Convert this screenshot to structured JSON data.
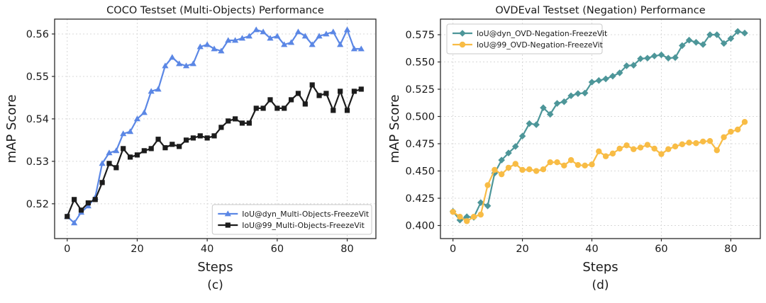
{
  "figure": {
    "background": "#ffffff",
    "text_color": "#1a1a1a",
    "grid_color": "#d8d8d8",
    "spine_color": "#2a2a2a"
  },
  "chart_data": [
    {
      "type": "line",
      "title": "COCO Testset (Multi-Objects) Performance",
      "xlabel": "Steps",
      "ylabel": "mAP Score",
      "caption": "(c)",
      "grid": true,
      "legend_position": "lower-right",
      "x_ticks": [
        0,
        20,
        40,
        60,
        80
      ],
      "x_tick_labels": [
        "0",
        "20",
        "40",
        "60",
        "80"
      ],
      "y_ticks": [
        0.52,
        0.53,
        0.54,
        0.55,
        0.56
      ],
      "y_tick_labels": [
        "0.52",
        "0.53",
        "0.54",
        "0.55",
        "0.56"
      ],
      "xlim": [
        -3.6,
        88.2
      ],
      "ylim": [
        0.5118,
        0.5635
      ],
      "x": [
        0,
        2,
        4,
        6,
        8,
        10,
        12,
        14,
        16,
        18,
        20,
        22,
        24,
        26,
        28,
        30,
        32,
        34,
        36,
        38,
        40,
        42,
        44,
        46,
        48,
        50,
        52,
        54,
        56,
        58,
        60,
        62,
        64,
        66,
        68,
        70,
        72,
        74,
        76,
        78,
        80,
        82,
        84
      ],
      "series": [
        {
          "name": "IoU@dyn_Multi-Objects-FreezeVit",
          "color": "#5b87e5",
          "marker": "triangle",
          "values": [
            0.517,
            0.5155,
            0.518,
            0.5195,
            0.5215,
            0.5295,
            0.532,
            0.5325,
            0.5365,
            0.537,
            0.54,
            0.5415,
            0.5465,
            0.547,
            0.5525,
            0.5545,
            0.553,
            0.5525,
            0.553,
            0.557,
            0.5575,
            0.5565,
            0.556,
            0.5585,
            0.5585,
            0.559,
            0.5595,
            0.561,
            0.5605,
            0.559,
            0.5595,
            0.5575,
            0.558,
            0.5605,
            0.5595,
            0.5575,
            0.5595,
            0.56,
            0.5605,
            0.5575,
            0.561,
            0.5565,
            0.5565
          ]
        },
        {
          "name": "IoU@99_Multi-Objects-FreezeVit",
          "color": "#1c1c1c",
          "marker": "square",
          "values": [
            0.517,
            0.521,
            0.5185,
            0.5202,
            0.521,
            0.525,
            0.5295,
            0.5285,
            0.533,
            0.531,
            0.5315,
            0.5325,
            0.533,
            0.5352,
            0.5332,
            0.534,
            0.5335,
            0.535,
            0.5355,
            0.536,
            0.5355,
            0.536,
            0.538,
            0.5395,
            0.54,
            0.539,
            0.539,
            0.5425,
            0.5425,
            0.5445,
            0.5425,
            0.5425,
            0.5445,
            0.546,
            0.5435,
            0.548,
            0.5455,
            0.546,
            0.542,
            0.5465,
            0.542,
            0.5465,
            0.547
          ]
        }
      ]
    },
    {
      "type": "line",
      "title": "OVDEval Testset (Negation) Performance",
      "xlabel": "Steps",
      "ylabel": "mAP Score",
      "caption": "(d)",
      "grid": true,
      "legend_position": "upper-left",
      "x_ticks": [
        0,
        20,
        40,
        60,
        80
      ],
      "x_tick_labels": [
        "0",
        "20",
        "40",
        "60",
        "80"
      ],
      "y_ticks": [
        0.4,
        0.425,
        0.45,
        0.475,
        0.5,
        0.525,
        0.55,
        0.575
      ],
      "y_tick_labels": [
        "0.400",
        "0.425",
        "0.450",
        "0.475",
        "0.500",
        "0.525",
        "0.550",
        "0.575"
      ],
      "xlim": [
        -3.6,
        88.5
      ],
      "ylim": [
        0.388,
        0.5893
      ],
      "x": [
        0,
        2,
        4,
        6,
        8,
        10,
        12,
        14,
        16,
        18,
        20,
        22,
        24,
        26,
        28,
        30,
        32,
        34,
        36,
        38,
        40,
        42,
        44,
        46,
        48,
        50,
        52,
        54,
        56,
        58,
        60,
        62,
        64,
        66,
        68,
        70,
        72,
        74,
        76,
        78,
        80,
        82,
        84
      ],
      "series": [
        {
          "name": "IoU@dyn_OVD-Negation-FreezeVit",
          "color": "#4d9699",
          "marker": "diamond",
          "values": [
            0.413,
            0.405,
            0.408,
            0.4075,
            0.421,
            0.418,
            0.448,
            0.46,
            0.4665,
            0.4725,
            0.482,
            0.4935,
            0.4925,
            0.508,
            0.502,
            0.512,
            0.5135,
            0.519,
            0.521,
            0.5215,
            0.5315,
            0.533,
            0.5345,
            0.537,
            0.54,
            0.5465,
            0.547,
            0.553,
            0.5535,
            0.5555,
            0.5565,
            0.5535,
            0.554,
            0.565,
            0.57,
            0.568,
            0.566,
            0.575,
            0.575,
            0.567,
            0.5715,
            0.578,
            0.5765
          ]
        },
        {
          "name": "IoU@99_OVD-Negation-FreezeVit",
          "color": "#f8bc45",
          "marker": "circle",
          "values": [
            0.4125,
            0.408,
            0.404,
            0.408,
            0.41,
            0.437,
            0.451,
            0.447,
            0.453,
            0.4565,
            0.451,
            0.4515,
            0.45,
            0.4515,
            0.458,
            0.458,
            0.455,
            0.46,
            0.4555,
            0.455,
            0.456,
            0.468,
            0.4635,
            0.466,
            0.4705,
            0.4735,
            0.47,
            0.4715,
            0.474,
            0.4705,
            0.4655,
            0.47,
            0.4725,
            0.4745,
            0.476,
            0.4755,
            0.477,
            0.4775,
            0.469,
            0.481,
            0.486,
            0.488,
            0.495
          ]
        }
      ]
    }
  ]
}
